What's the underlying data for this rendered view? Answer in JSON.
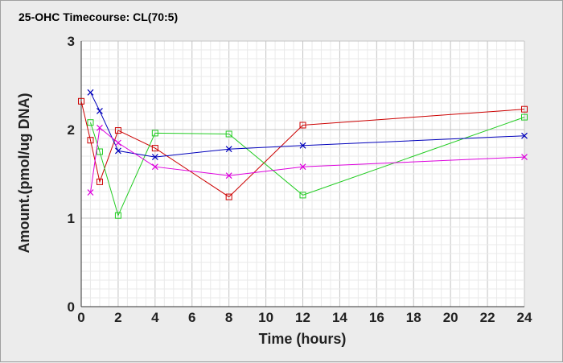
{
  "chart_data": {
    "type": "line",
    "title": "25-OHC Timecourse: CL(70:5)",
    "xlabel": "Time (hours)",
    "ylabel": "Amount.(pmol/ug DNA)",
    "xlim": [
      0,
      24
    ],
    "ylim": [
      0,
      3
    ],
    "xticks": [
      0,
      2,
      4,
      6,
      8,
      10,
      12,
      14,
      16,
      18,
      20,
      22,
      24
    ],
    "yticks": [
      0,
      1,
      2,
      3
    ],
    "grid": true,
    "legend": "none",
    "series": [
      {
        "color": "#cc0000",
        "marker": "square",
        "x": [
          0,
          0.5,
          1,
          2,
          4,
          8,
          12,
          24
        ],
        "y": [
          2.32,
          1.88,
          1.41,
          1.99,
          1.79,
          1.24,
          2.05,
          2.23
        ]
      },
      {
        "color": "#22cc22",
        "marker": "square",
        "x": [
          0.5,
          1,
          2,
          4,
          8,
          12,
          24
        ],
        "y": [
          2.08,
          1.75,
          1.03,
          1.96,
          1.95,
          1.26,
          2.14
        ]
      },
      {
        "color": "#0000bb",
        "marker": "x",
        "x": [
          0.5,
          1,
          2,
          4,
          8,
          12,
          24
        ],
        "y": [
          2.42,
          2.21,
          1.76,
          1.69,
          1.78,
          1.82,
          1.93
        ]
      },
      {
        "color": "#dd00dd",
        "marker": "x",
        "x": [
          0.5,
          1,
          2,
          4,
          8,
          12,
          24
        ],
        "y": [
          1.29,
          2.02,
          1.85,
          1.58,
          1.48,
          1.58,
          1.69
        ]
      }
    ]
  }
}
